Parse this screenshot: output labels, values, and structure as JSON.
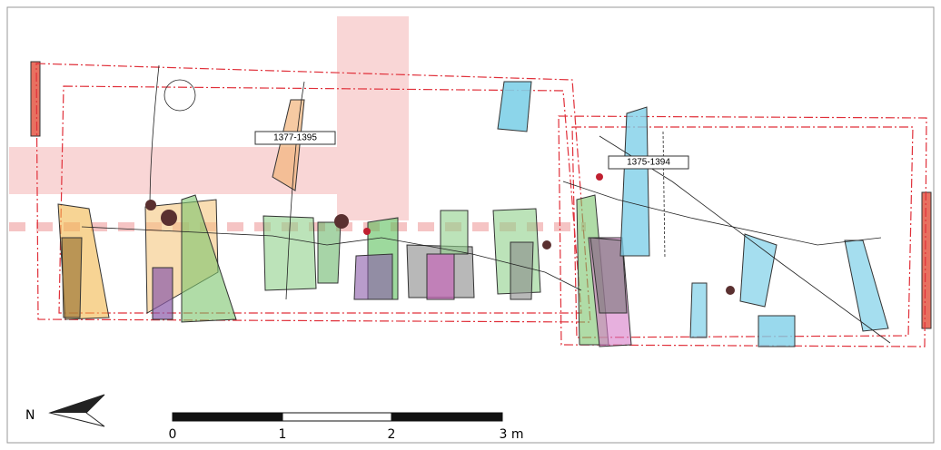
{
  "plan": {
    "labels": [
      "1377-1395",
      "1375-1394"
    ]
  },
  "north_arrow": {
    "label": "N"
  },
  "scale_bar": {
    "labels": [
      "0",
      "1",
      "2",
      "3 m"
    ]
  }
}
